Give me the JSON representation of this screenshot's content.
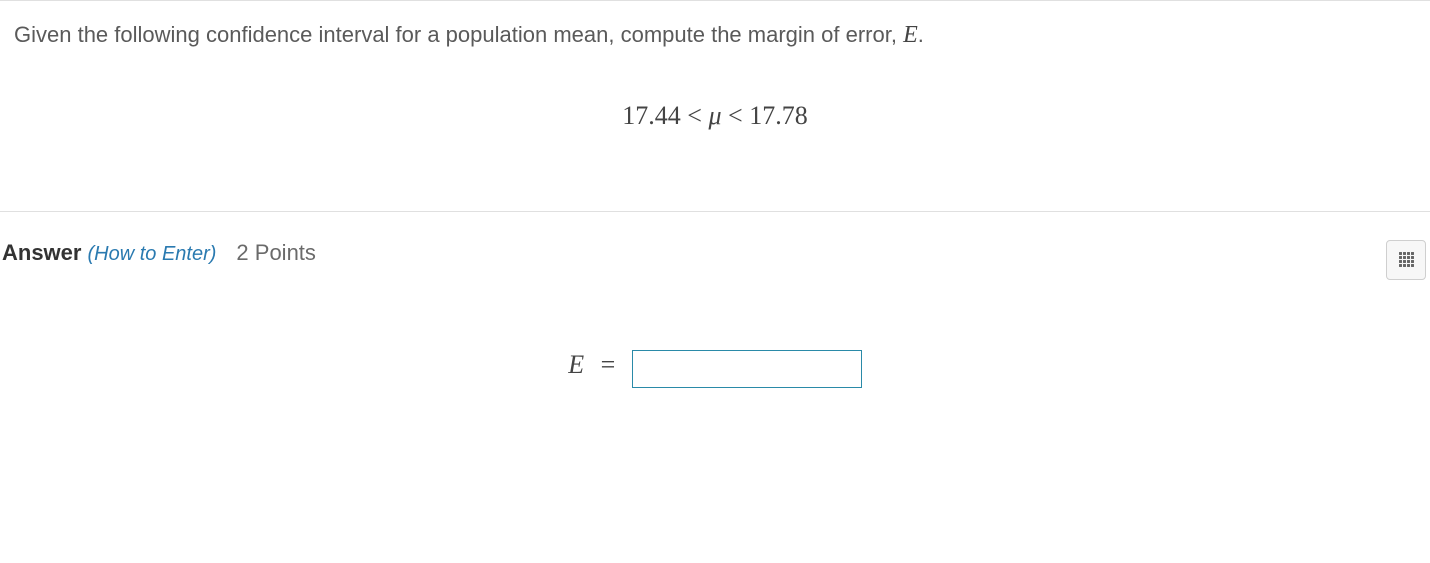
{
  "question": {
    "prompt_text": "Given the following confidence interval for a population mean, compute the margin of error, ",
    "variable_E": "E",
    "period": ".",
    "interval": {
      "lower": "17.44",
      "lt1": " < ",
      "mu": "μ",
      "lt2": " < ",
      "upper": "17.78"
    }
  },
  "answer": {
    "label": "Answer",
    "how_to_enter": "(How to Enter)",
    "points": "2 Points",
    "input_label_var": "E",
    "input_label_eq": " = ",
    "input_value": "",
    "input_placeholder": ""
  },
  "colors": {
    "border": "#e0e0e0",
    "text": "#5a5a5a",
    "link": "#2a7ab0",
    "input_border": "#2a8aa8"
  }
}
